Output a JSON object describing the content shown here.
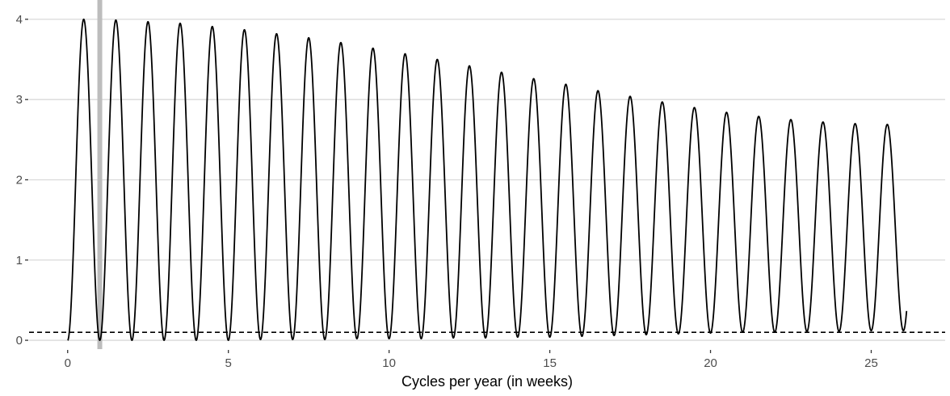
{
  "chart_data": {
    "type": "line",
    "title": "",
    "xlabel": "Cycles per year (in weeks)",
    "ylabel": "",
    "xlim": [
      -1.2,
      27.3
    ],
    "ylim": [
      -0.11,
      4.2
    ],
    "x_ticks": [
      0,
      5,
      10,
      15,
      20,
      25
    ],
    "y_ticks": [
      0,
      1,
      2,
      3,
      4
    ],
    "x_tick_labels": [
      "0",
      "5",
      "10",
      "15",
      "20",
      "25"
    ],
    "y_tick_labels": [
      "0",
      "1",
      "2",
      "3",
      "4"
    ],
    "grid": "horizontal",
    "legend": "none",
    "reference_lines": {
      "vertical": {
        "x": 1,
        "color": "#bdbdbd"
      },
      "horizontal_dashed": {
        "y": 0.1,
        "color": "#000000"
      }
    },
    "series": [
      {
        "color": "#000000",
        "x_range": [
          0,
          26.1
        ],
        "peaks": [
          {
            "x": 0.5,
            "y": 4.0
          },
          {
            "x": 1.5,
            "y": 3.99
          },
          {
            "x": 2.5,
            "y": 3.97
          },
          {
            "x": 3.5,
            "y": 3.95
          },
          {
            "x": 4.5,
            "y": 3.91
          },
          {
            "x": 5.5,
            "y": 3.87
          },
          {
            "x": 6.5,
            "y": 3.82
          },
          {
            "x": 7.5,
            "y": 3.77
          },
          {
            "x": 8.5,
            "y": 3.71
          },
          {
            "x": 9.5,
            "y": 3.64
          },
          {
            "x": 10.5,
            "y": 3.57
          },
          {
            "x": 11.5,
            "y": 3.5
          },
          {
            "x": 12.5,
            "y": 3.42
          },
          {
            "x": 13.5,
            "y": 3.34
          },
          {
            "x": 14.5,
            "y": 3.26
          },
          {
            "x": 15.5,
            "y": 3.19
          },
          {
            "x": 16.5,
            "y": 3.11
          },
          {
            "x": 17.5,
            "y": 3.04
          },
          {
            "x": 18.5,
            "y": 2.97
          },
          {
            "x": 19.5,
            "y": 2.9
          },
          {
            "x": 20.5,
            "y": 2.84
          },
          {
            "x": 21.5,
            "y": 2.79
          },
          {
            "x": 22.5,
            "y": 2.75
          },
          {
            "x": 23.5,
            "y": 2.72
          },
          {
            "x": 24.5,
            "y": 2.7
          },
          {
            "x": 25.5,
            "y": 2.69
          }
        ],
        "troughs": [
          {
            "x": 0,
            "y": 0.0
          },
          {
            "x": 1,
            "y": 0.0
          },
          {
            "x": 2,
            "y": 0.0
          },
          {
            "x": 3,
            "y": 0.0
          },
          {
            "x": 4,
            "y": 0.0
          },
          {
            "x": 5,
            "y": 0.0
          },
          {
            "x": 6,
            "y": 0.01
          },
          {
            "x": 7,
            "y": 0.01
          },
          {
            "x": 8,
            "y": 0.01
          },
          {
            "x": 9,
            "y": 0.02
          },
          {
            "x": 10,
            "y": 0.02
          },
          {
            "x": 11,
            "y": 0.02
          },
          {
            "x": 12,
            "y": 0.03
          },
          {
            "x": 13,
            "y": 0.03
          },
          {
            "x": 14,
            "y": 0.04
          },
          {
            "x": 15,
            "y": 0.04
          },
          {
            "x": 16,
            "y": 0.05
          },
          {
            "x": 17,
            "y": 0.06
          },
          {
            "x": 18,
            "y": 0.07
          },
          {
            "x": 19,
            "y": 0.08
          },
          {
            "x": 20,
            "y": 0.09
          },
          {
            "x": 21,
            "y": 0.1
          },
          {
            "x": 22,
            "y": 0.1
          },
          {
            "x": 23,
            "y": 0.11
          },
          {
            "x": 24,
            "y": 0.11
          },
          {
            "x": 25,
            "y": 0.12
          },
          {
            "x": 26.1,
            "y": 0.12
          }
        ]
      }
    ]
  }
}
